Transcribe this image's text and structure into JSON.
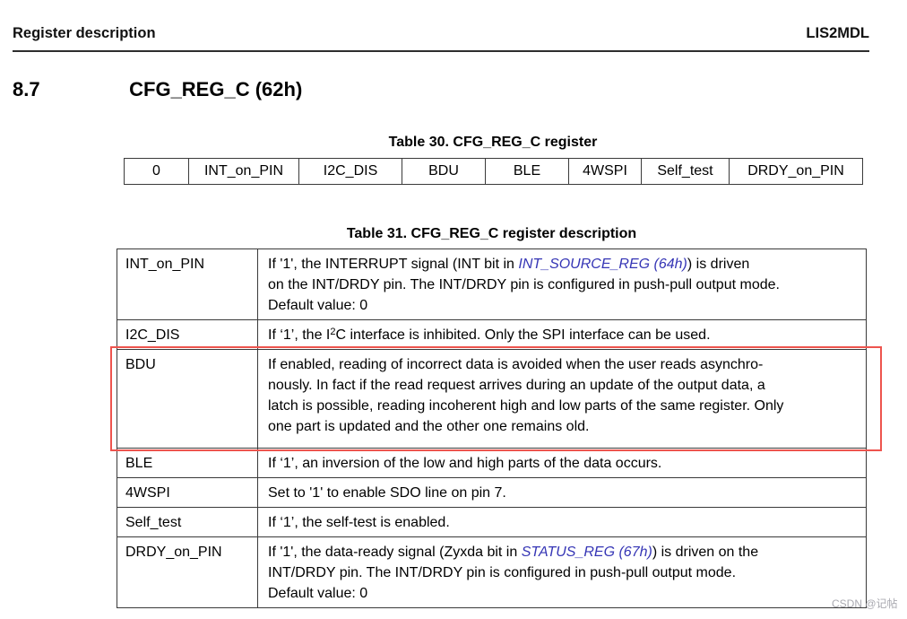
{
  "header": {
    "left": "Register description",
    "right": "LIS2MDL"
  },
  "section": {
    "number": "8.7",
    "title": "CFG_REG_C (62h)"
  },
  "register_table": {
    "caption": "Table 30. CFG_REG_C register",
    "bits": [
      "0",
      "INT_on_PIN",
      "I2C_DIS",
      "BDU",
      "BLE",
      "4WSPI",
      "Self_test",
      "DRDY_on_PIN"
    ]
  },
  "description_table": {
    "caption": "Table 31. CFG_REG_C register description",
    "rows": [
      {
        "name": "INT_on_PIN",
        "highlight": false,
        "segments": [
          {
            "text": "If '1', the INTERRUPT signal (INT bit in "
          },
          {
            "link": "INT_SOURCE_REG (64h)"
          },
          {
            "text": ") is driven\non the INT/DRDY pin. The INT/DRDY pin is configured in push-pull output mode.\nDefault value: 0"
          }
        ]
      },
      {
        "name": "I2C_DIS",
        "highlight": false,
        "segments": [
          {
            "text": "If ‘1’, the I"
          },
          {
            "sup": "2"
          },
          {
            "text": "C interface is inhibited. Only the SPI interface can be used."
          }
        ]
      },
      {
        "name": "BDU",
        "highlight": true,
        "segments": [
          {
            "text": "If enabled, reading of incorrect data is avoided when the user reads asynchro-\nnously. In fact if the read request arrives during an update of the output data, a\nlatch is possible, reading incoherent high and low parts of the same register. Only\none part is updated and the other one remains old."
          }
        ]
      },
      {
        "name": "BLE",
        "highlight": false,
        "segments": [
          {
            "text": "If ‘1’, an inversion of the low and high parts of the data occurs."
          }
        ]
      },
      {
        "name": "4WSPI",
        "highlight": false,
        "segments": [
          {
            "text": "Set to '1' to enable SDO line on pin 7."
          }
        ]
      },
      {
        "name": "Self_test",
        "highlight": false,
        "segments": [
          {
            "text": "If ‘1’, the self-test is enabled."
          }
        ]
      },
      {
        "name": "DRDY_on_PIN",
        "highlight": false,
        "segments": [
          {
            "text": "If '1', the data-ready signal (Zyxda bit in "
          },
          {
            "link": "STATUS_REG (67h)"
          },
          {
            "text": ") is driven on the\nINT/DRDY pin. The INT/DRDY pin is configured in push-pull output mode.\nDefault value: 0"
          }
        ]
      }
    ]
  },
  "watermark": "CSDN @记帖",
  "colors": {
    "link": "#3535b5",
    "highlight_box": "#ee544e"
  }
}
